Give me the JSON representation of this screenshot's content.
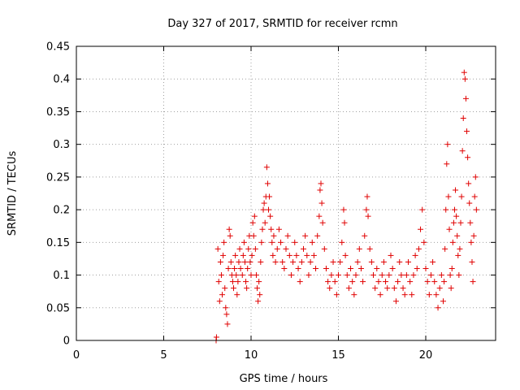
{
  "chart_data": {
    "type": "scatter",
    "title": "Day 327 of 2017, SRMTID for receiver rcmn",
    "xlabel": "GPS time / hours",
    "ylabel": "SRMTID / TECUs",
    "xlim": [
      0,
      24
    ],
    "ylim": [
      0,
      0.45
    ],
    "xticks": [
      "0",
      "5",
      "10",
      "15",
      "20"
    ],
    "yticks": [
      "0",
      "0.05",
      "0.1",
      "0.15",
      "0.2",
      "0.25",
      "0.3",
      "0.35",
      "0.4",
      "0.45"
    ],
    "grid": true,
    "marker": "+",
    "color": "#e00000",
    "series": [
      {
        "points": [
          [
            8.0,
            0.0
          ],
          [
            8.02,
            0.005
          ],
          [
            8.1,
            0.14
          ],
          [
            8.15,
            0.09
          ],
          [
            8.2,
            0.06
          ],
          [
            8.25,
            0.12
          ],
          [
            8.3,
            0.1
          ],
          [
            8.35,
            0.07
          ],
          [
            8.4,
            0.13
          ],
          [
            8.45,
            0.15
          ],
          [
            8.5,
            0.08
          ],
          [
            8.55,
            0.05
          ],
          [
            8.6,
            0.04
          ],
          [
            8.65,
            0.025
          ],
          [
            8.7,
            0.11
          ],
          [
            8.75,
            0.17
          ],
          [
            8.8,
            0.16
          ],
          [
            8.85,
            0.12
          ],
          [
            8.9,
            0.1
          ],
          [
            8.95,
            0.09
          ],
          [
            9.0,
            0.08
          ],
          [
            9.05,
            0.11
          ],
          [
            9.1,
            0.13
          ],
          [
            9.15,
            0.1
          ],
          [
            9.2,
            0.07
          ],
          [
            9.25,
            0.09
          ],
          [
            9.3,
            0.12
          ],
          [
            9.35,
            0.14
          ],
          [
            9.4,
            0.11
          ],
          [
            9.5,
            0.1
          ],
          [
            9.55,
            0.13
          ],
          [
            9.6,
            0.15
          ],
          [
            9.65,
            0.12
          ],
          [
            9.7,
            0.09
          ],
          [
            9.75,
            0.08
          ],
          [
            9.8,
            0.11
          ],
          [
            9.85,
            0.14
          ],
          [
            9.9,
            0.16
          ],
          [
            9.95,
            0.12
          ],
          [
            10.0,
            0.1
          ],
          [
            10.05,
            0.13
          ],
          [
            10.1,
            0.18
          ],
          [
            10.15,
            0.16
          ],
          [
            10.2,
            0.19
          ],
          [
            10.25,
            0.14
          ],
          [
            10.3,
            0.1
          ],
          [
            10.35,
            0.08
          ],
          [
            10.4,
            0.06
          ],
          [
            10.45,
            0.09
          ],
          [
            10.5,
            0.07
          ],
          [
            10.55,
            0.12
          ],
          [
            10.6,
            0.15
          ],
          [
            10.65,
            0.17
          ],
          [
            10.7,
            0.2
          ],
          [
            10.75,
            0.21
          ],
          [
            10.8,
            0.18
          ],
          [
            10.85,
            0.22
          ],
          [
            10.9,
            0.265
          ],
          [
            10.95,
            0.24
          ],
          [
            11.0,
            0.2
          ],
          [
            11.05,
            0.22
          ],
          [
            11.1,
            0.19
          ],
          [
            11.15,
            0.17
          ],
          [
            11.2,
            0.15
          ],
          [
            11.25,
            0.13
          ],
          [
            11.3,
            0.16
          ],
          [
            11.4,
            0.12
          ],
          [
            11.5,
            0.14
          ],
          [
            11.6,
            0.17
          ],
          [
            11.7,
            0.15
          ],
          [
            11.8,
            0.12
          ],
          [
            11.9,
            0.11
          ],
          [
            12.0,
            0.14
          ],
          [
            12.1,
            0.16
          ],
          [
            12.2,
            0.13
          ],
          [
            12.3,
            0.1
          ],
          [
            12.4,
            0.12
          ],
          [
            12.5,
            0.15
          ],
          [
            12.6,
            0.13
          ],
          [
            12.7,
            0.11
          ],
          [
            12.8,
            0.09
          ],
          [
            12.9,
            0.12
          ],
          [
            13.0,
            0.14
          ],
          [
            13.1,
            0.16
          ],
          [
            13.2,
            0.13
          ],
          [
            13.3,
            0.1
          ],
          [
            13.4,
            0.12
          ],
          [
            13.5,
            0.15
          ],
          [
            13.6,
            0.13
          ],
          [
            13.7,
            0.11
          ],
          [
            13.8,
            0.16
          ],
          [
            13.9,
            0.19
          ],
          [
            13.95,
            0.23
          ],
          [
            14.0,
            0.24
          ],
          [
            14.05,
            0.21
          ],
          [
            14.1,
            0.18
          ],
          [
            14.2,
            0.14
          ],
          [
            14.3,
            0.11
          ],
          [
            14.4,
            0.09
          ],
          [
            14.5,
            0.08
          ],
          [
            14.6,
            0.1
          ],
          [
            14.7,
            0.12
          ],
          [
            14.8,
            0.09
          ],
          [
            14.9,
            0.07
          ],
          [
            15.0,
            0.1
          ],
          [
            15.1,
            0.12
          ],
          [
            15.2,
            0.15
          ],
          [
            15.3,
            0.2
          ],
          [
            15.35,
            0.18
          ],
          [
            15.4,
            0.13
          ],
          [
            15.5,
            0.1
          ],
          [
            15.6,
            0.08
          ],
          [
            15.7,
            0.11
          ],
          [
            15.8,
            0.09
          ],
          [
            15.9,
            0.07
          ],
          [
            16.0,
            0.1
          ],
          [
            16.1,
            0.12
          ],
          [
            16.2,
            0.14
          ],
          [
            16.3,
            0.11
          ],
          [
            16.4,
            0.09
          ],
          [
            16.5,
            0.16
          ],
          [
            16.6,
            0.2
          ],
          [
            16.65,
            0.22
          ],
          [
            16.7,
            0.19
          ],
          [
            16.8,
            0.14
          ],
          [
            16.9,
            0.12
          ],
          [
            17.0,
            0.1
          ],
          [
            17.1,
            0.08
          ],
          [
            17.2,
            0.11
          ],
          [
            17.3,
            0.09
          ],
          [
            17.4,
            0.07
          ],
          [
            17.5,
            0.1
          ],
          [
            17.6,
            0.12
          ],
          [
            17.7,
            0.09
          ],
          [
            17.8,
            0.08
          ],
          [
            17.9,
            0.1
          ],
          [
            18.0,
            0.13
          ],
          [
            18.1,
            0.11
          ],
          [
            18.2,
            0.08
          ],
          [
            18.3,
            0.06
          ],
          [
            18.4,
            0.09
          ],
          [
            18.5,
            0.12
          ],
          [
            18.6,
            0.1
          ],
          [
            18.7,
            0.08
          ],
          [
            18.8,
            0.07
          ],
          [
            18.9,
            0.1
          ],
          [
            19.0,
            0.12
          ],
          [
            19.1,
            0.09
          ],
          [
            19.2,
            0.07
          ],
          [
            19.3,
            0.1
          ],
          [
            19.4,
            0.13
          ],
          [
            19.5,
            0.11
          ],
          [
            19.6,
            0.14
          ],
          [
            19.7,
            0.17
          ],
          [
            19.8,
            0.2
          ],
          [
            19.9,
            0.15
          ],
          [
            20.0,
            0.11
          ],
          [
            20.1,
            0.09
          ],
          [
            20.2,
            0.07
          ],
          [
            20.3,
            0.1
          ],
          [
            20.4,
            0.12
          ],
          [
            20.5,
            0.09
          ],
          [
            20.6,
            0.07
          ],
          [
            20.7,
            0.05
          ],
          [
            20.8,
            0.08
          ],
          [
            20.9,
            0.1
          ],
          [
            21.0,
            0.06
          ],
          [
            21.05,
            0.09
          ],
          [
            21.1,
            0.14
          ],
          [
            21.15,
            0.2
          ],
          [
            21.2,
            0.27
          ],
          [
            21.25,
            0.3
          ],
          [
            21.3,
            0.22
          ],
          [
            21.35,
            0.17
          ],
          [
            21.4,
            0.1
          ],
          [
            21.45,
            0.08
          ],
          [
            21.5,
            0.11
          ],
          [
            21.55,
            0.15
          ],
          [
            21.6,
            0.18
          ],
          [
            21.65,
            0.2
          ],
          [
            21.7,
            0.23
          ],
          [
            21.75,
            0.19
          ],
          [
            21.8,
            0.16
          ],
          [
            21.85,
            0.13
          ],
          [
            21.9,
            0.1
          ],
          [
            21.95,
            0.14
          ],
          [
            22.0,
            0.18
          ],
          [
            22.05,
            0.22
          ],
          [
            22.1,
            0.29
          ],
          [
            22.15,
            0.34
          ],
          [
            22.2,
            0.41
          ],
          [
            22.25,
            0.4
          ],
          [
            22.3,
            0.37
          ],
          [
            22.35,
            0.32
          ],
          [
            22.4,
            0.28
          ],
          [
            22.45,
            0.24
          ],
          [
            22.5,
            0.21
          ],
          [
            22.55,
            0.18
          ],
          [
            22.6,
            0.15
          ],
          [
            22.65,
            0.12
          ],
          [
            22.7,
            0.09
          ],
          [
            22.75,
            0.16
          ],
          [
            22.8,
            0.22
          ],
          [
            22.85,
            0.25
          ],
          [
            22.9,
            0.2
          ]
        ]
      }
    ]
  }
}
